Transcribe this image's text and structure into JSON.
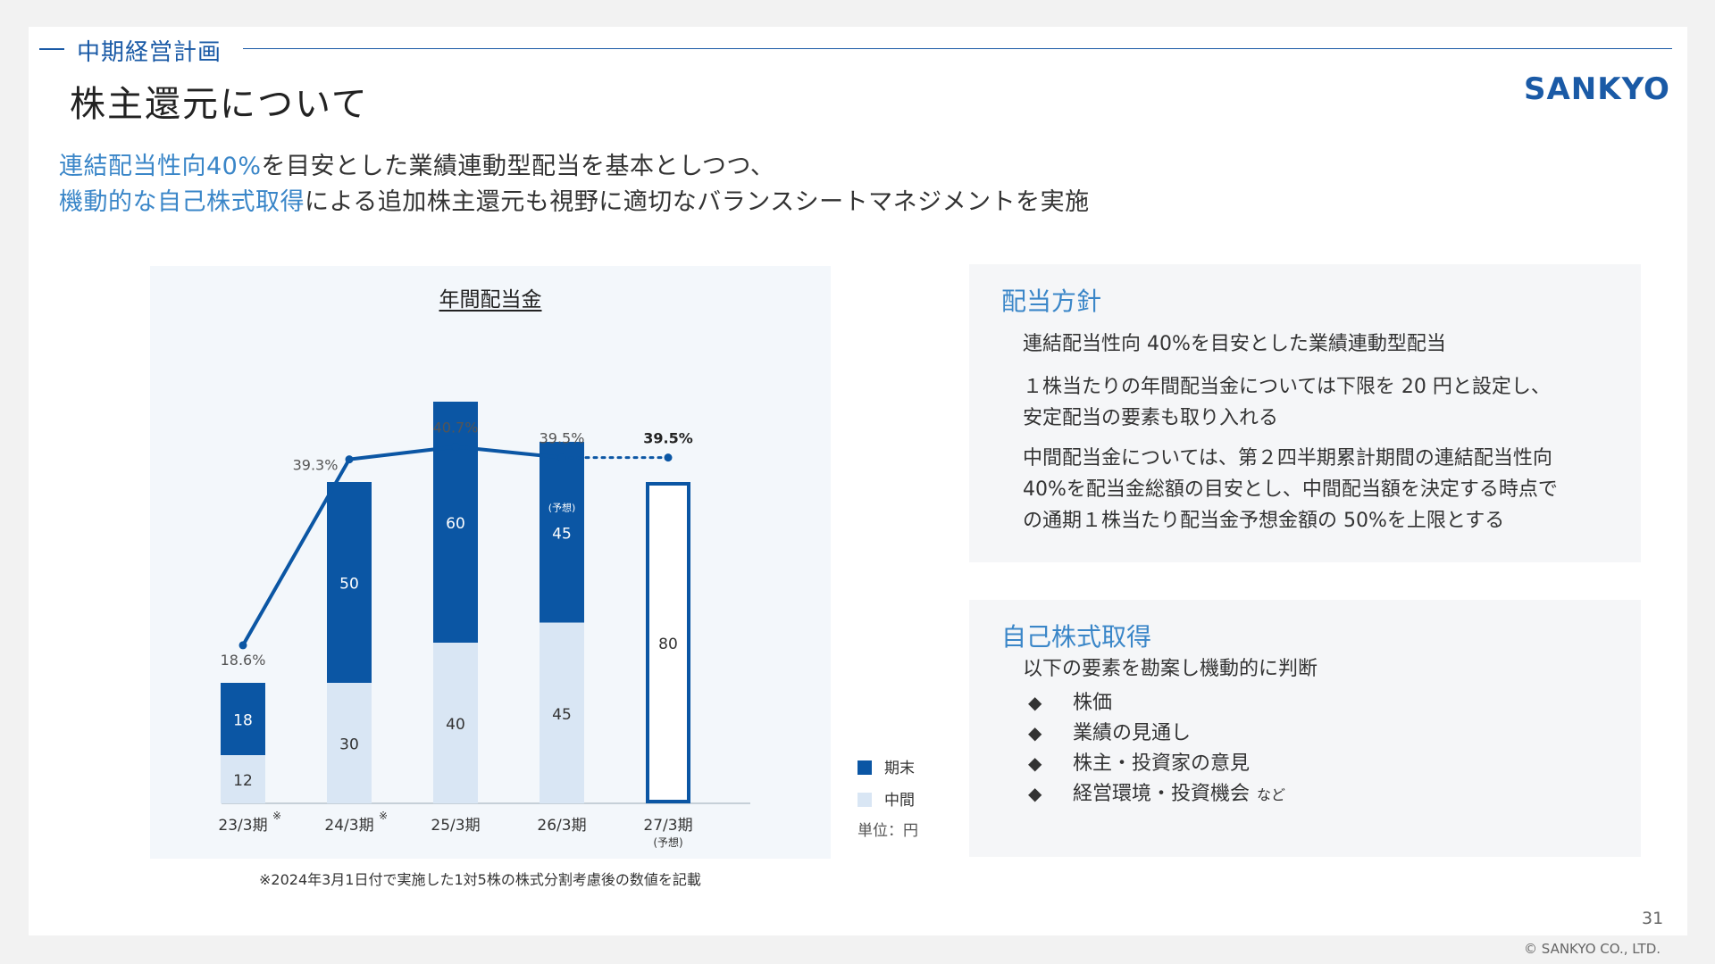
{
  "header": {
    "section": "中期経営計画",
    "title": "株主還元について",
    "logo": "SANKYO"
  },
  "lead": {
    "line1_highlight": "連結配当性向40%",
    "line1_rest": "を目安とした業績連動型配当を基本としつつ、",
    "line2_highlight": "機動的な自己株式取得",
    "line2_rest": "による追加株主還元も視野に適切なバランスシートマネジメントを実施"
  },
  "chart_data": {
    "type": "bar",
    "title": "年間配当金",
    "categories": [
      "23/3期",
      "24/3期",
      "25/3期",
      "26/3期",
      "27/3期"
    ],
    "category_marks": [
      "※",
      "※",
      "",
      "",
      ""
    ],
    "category_sub": [
      "",
      "",
      "",
      "",
      "(予想)"
    ],
    "series": [
      {
        "name": "中間",
        "values": [
          12,
          30,
          40,
          45,
          null
        ]
      },
      {
        "name": "期末",
        "values": [
          18,
          50,
          60,
          45,
          null
        ]
      }
    ],
    "total_only": [
      null,
      null,
      null,
      null,
      80
    ],
    "forecast_label": "(予想)",
    "payout_ratio": {
      "values": [
        18.6,
        39.3,
        40.7,
        39.5,
        39.5
      ],
      "labels": [
        "18.6%",
        "39.3%",
        "40.7%",
        "39.5%",
        "39.5%"
      ],
      "forecast_from_index": 3
    },
    "ylim": [
      0,
      100
    ],
    "unit": "単位：円",
    "colors": {
      "end": "#0b56a4",
      "mid": "#d9e6f4",
      "line": "#0b56a4"
    }
  },
  "legend": {
    "end_label": "期末",
    "mid_label": "中間",
    "unit": "単位：円"
  },
  "footnote": "※2024年3月1日付で実施した1対5株の株式分割考慮後の数値を記載",
  "dividend_policy": {
    "title": "配当方針",
    "p1": "連結配当性向 40%を目安とした業績連動型配当",
    "p2_line1": "１株当たりの年間配当金については下限を 20 円と設定し、",
    "p2_line2": "安定配当の要素も取り入れる",
    "p3_line1": "中間配当金については、第２四半期累計期間の連結配当性向",
    "p3_line2": "40%を配当金総額の目安とし、中間配当額を決定する時点で",
    "p3_line3": "の通期１株当たり配当金予想金額の 50%を上限とする"
  },
  "buyback": {
    "title": "自己株式取得",
    "intro": "以下の要素を勘案し機動的に判断",
    "items": [
      "株価",
      "業績の見通し",
      "株主・投資家の意見",
      "経営環境・投資機会"
    ],
    "items_suffix": "など",
    "marker": "◆"
  },
  "footer": {
    "page": "31",
    "copyright": "© SANKYO CO., LTD."
  }
}
